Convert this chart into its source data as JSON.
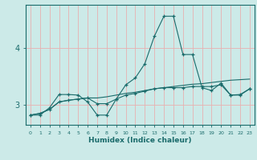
{
  "xlabel": "Humidex (Indice chaleur)",
  "x_ticks": [
    0,
    1,
    2,
    3,
    4,
    5,
    6,
    7,
    8,
    9,
    10,
    11,
    12,
    13,
    14,
    15,
    16,
    17,
    18,
    19,
    20,
    21,
    22,
    23
  ],
  "y_ticks": [
    3,
    4
  ],
  "ylim": [
    2.65,
    4.75
  ],
  "xlim": [
    -0.5,
    23.5
  ],
  "bg_color": "#cceae8",
  "grid_color": "#e8b0b0",
  "line_color": "#1a6b6b",
  "series1_y": [
    2.82,
    2.82,
    2.95,
    3.18,
    3.18,
    3.17,
    3.05,
    2.82,
    2.82,
    3.1,
    3.35,
    3.47,
    3.72,
    4.2,
    4.55,
    4.55,
    3.88,
    3.88,
    3.3,
    3.25,
    3.38,
    3.17,
    3.17,
    3.28
  ],
  "series2_y": [
    2.82,
    2.85,
    2.92,
    3.05,
    3.08,
    3.1,
    3.12,
    3.02,
    3.02,
    3.1,
    3.17,
    3.2,
    3.24,
    3.28,
    3.3,
    3.3,
    3.3,
    3.32,
    3.32,
    3.32,
    3.35,
    3.17,
    3.18,
    3.28
  ],
  "series3_y": [
    2.82,
    2.85,
    2.92,
    3.05,
    3.08,
    3.1,
    3.12,
    3.12,
    3.14,
    3.17,
    3.2,
    3.22,
    3.25,
    3.28,
    3.3,
    3.32,
    3.34,
    3.36,
    3.37,
    3.39,
    3.41,
    3.43,
    3.44,
    3.45
  ]
}
